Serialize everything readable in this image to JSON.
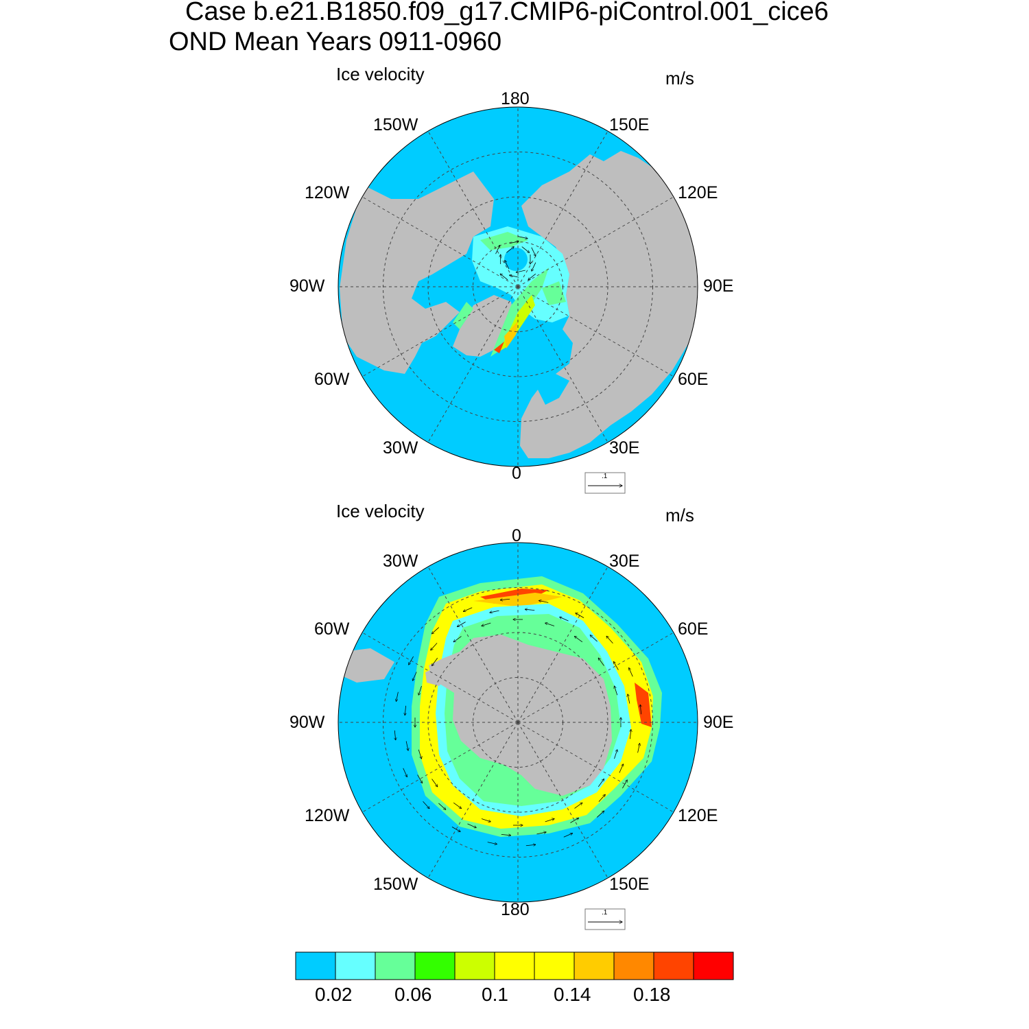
{
  "title": {
    "line1": "Case b.e21.B1850.f09_g17.CMIP6-piControl.001_cice6",
    "line2": "OND Mean   Years 0911-0960"
  },
  "panels": [
    {
      "name": "north",
      "label_left": "Ice velocity",
      "label_right": "m/s",
      "ref_vector": ".1",
      "lon_labels": [
        "180",
        "150E",
        "120E",
        "90E",
        "60E",
        "30E",
        "0",
        "30W",
        "60W",
        "90W",
        "120W",
        "150W"
      ]
    },
    {
      "name": "south",
      "label_left": "Ice velocity",
      "label_right": "m/s",
      "ref_vector": ".1",
      "lon_labels": [
        "0",
        "30E",
        "60E",
        "90E",
        "120E",
        "150E",
        "180",
        "150W",
        "120W",
        "90W",
        "60W",
        "30W"
      ]
    }
  ],
  "colorbar": {
    "colors": [
      "#00ccff",
      "#66ffff",
      "#66ff99",
      "#33ff00",
      "#ccff00",
      "#ffff00",
      "#ffff00",
      "#ffcc00",
      "#ff8800",
      "#ff4400",
      "#ff0000"
    ],
    "tick_labels": [
      "0.02",
      "0.06",
      "0.1",
      "0.14",
      "0.18"
    ]
  },
  "colors": {
    "ocean": "#00ccff",
    "land": "#bebebe",
    "grid": "#444444"
  }
}
